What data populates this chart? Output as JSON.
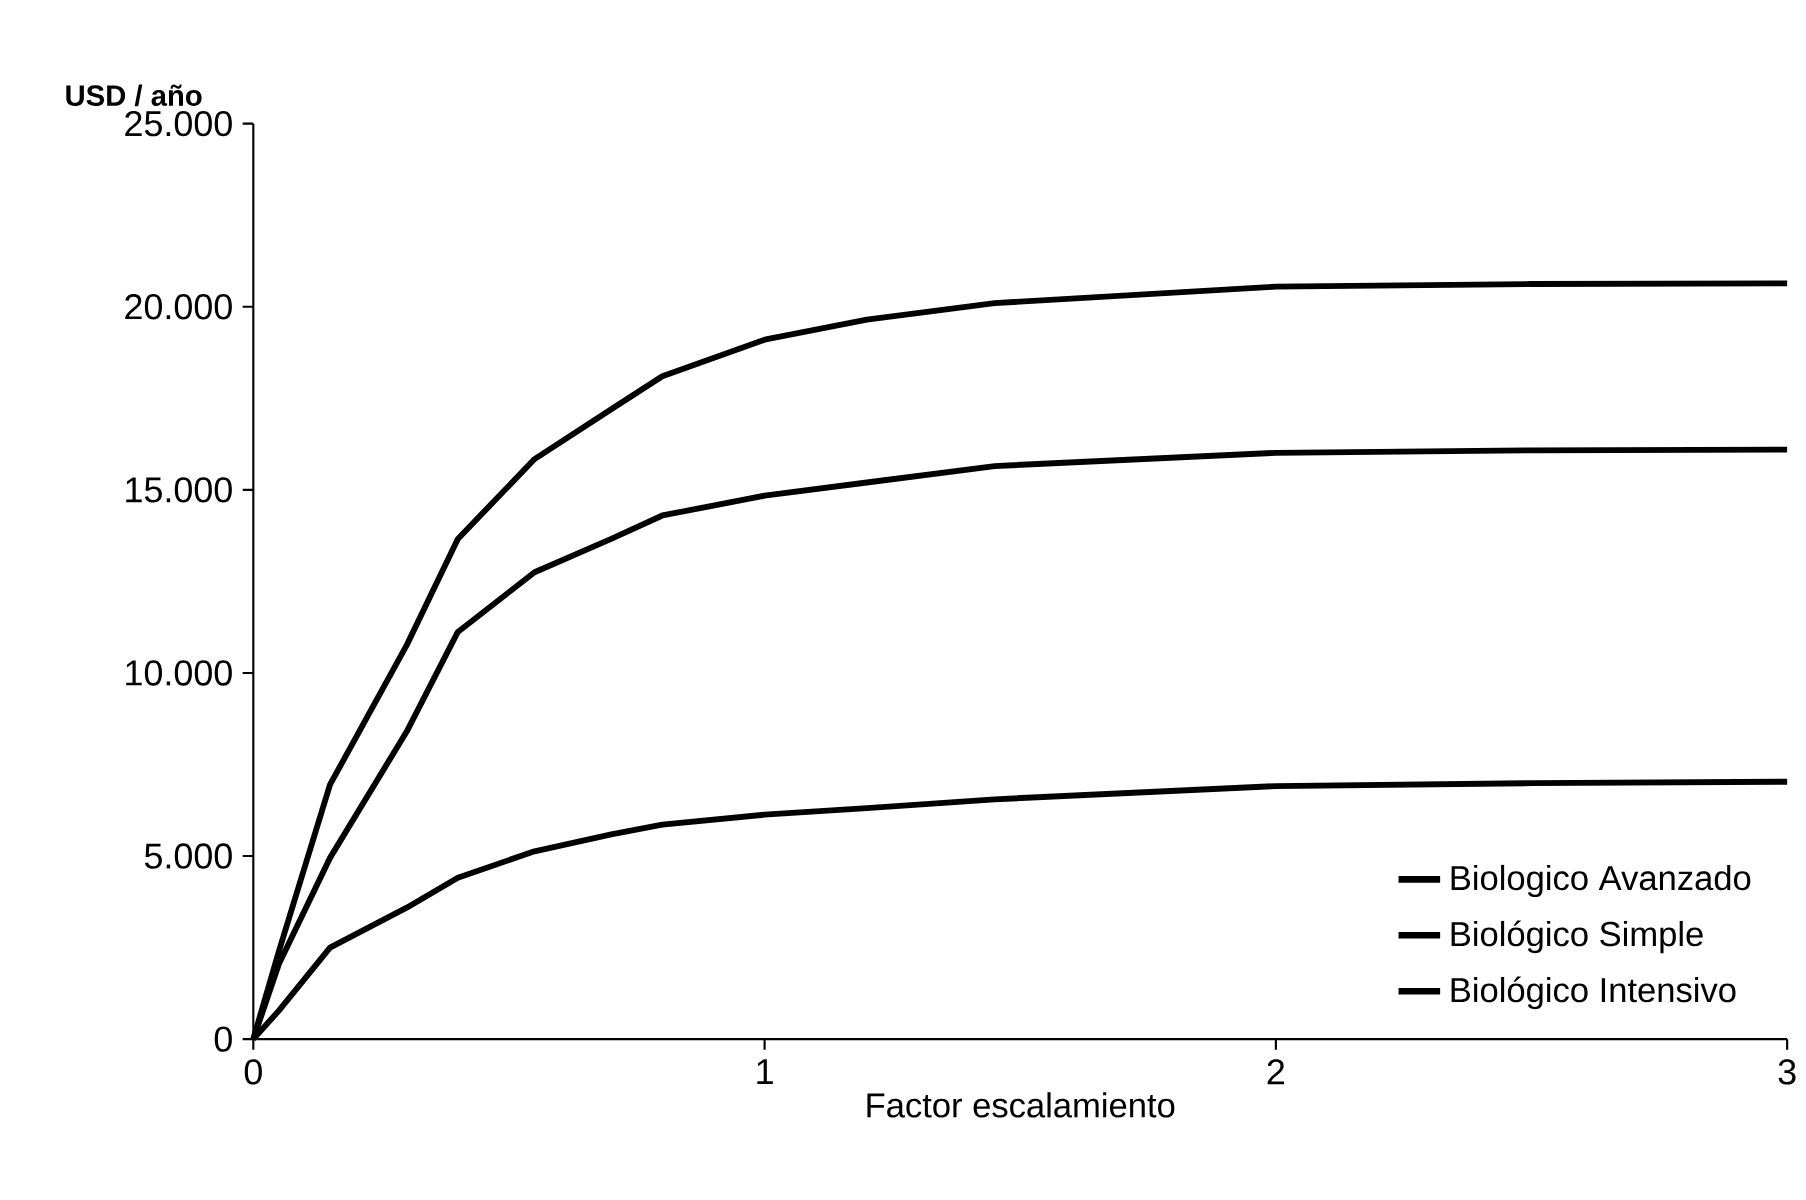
{
  "chart_data": {
    "type": "line",
    "xlabel": "Factor escalamiento",
    "ylabel": "USD / año",
    "x": [
      0,
      0.05,
      0.15,
      0.3,
      0.4,
      0.55,
      0.7,
      0.8,
      1,
      1.2,
      1.45,
      2,
      2.5,
      3
    ],
    "series": [
      {
        "name": "Biologico Avanzado",
        "color": "#000000",
        "values": [
          0,
          2400,
          6950,
          10760,
          13660,
          15840,
          17200,
          18100,
          19100,
          19650,
          20100,
          20550,
          20620,
          20640
        ]
      },
      {
        "name": "Biológico Simple",
        "color": "#000000",
        "values": [
          0,
          2050,
          4950,
          8400,
          11120,
          12750,
          13660,
          14300,
          14840,
          15200,
          15650,
          16010,
          16080,
          16100
        ]
      },
      {
        "name": "Biológico Intensivo",
        "color": "#000000",
        "values": [
          0,
          780,
          2500,
          3590,
          4410,
          5130,
          5590,
          5860,
          6130,
          6310,
          6550,
          6910,
          6990,
          7030
        ]
      }
    ],
    "xlim": [
      0,
      3
    ],
    "ylim": [
      0,
      25000
    ],
    "xticks": [
      0,
      1,
      2,
      3
    ],
    "yticks": [
      {
        "value": 0,
        "label": "0"
      },
      {
        "value": 5000,
        "label": "5.000"
      },
      {
        "value": 10000,
        "label": "10.000"
      },
      {
        "value": 15000,
        "label": "15.000"
      },
      {
        "value": 20000,
        "label": "20.000"
      },
      {
        "value": 25000,
        "label": "25.000"
      }
    ],
    "legend": "bottom right",
    "marker": "none",
    "line_style": "solid"
  }
}
